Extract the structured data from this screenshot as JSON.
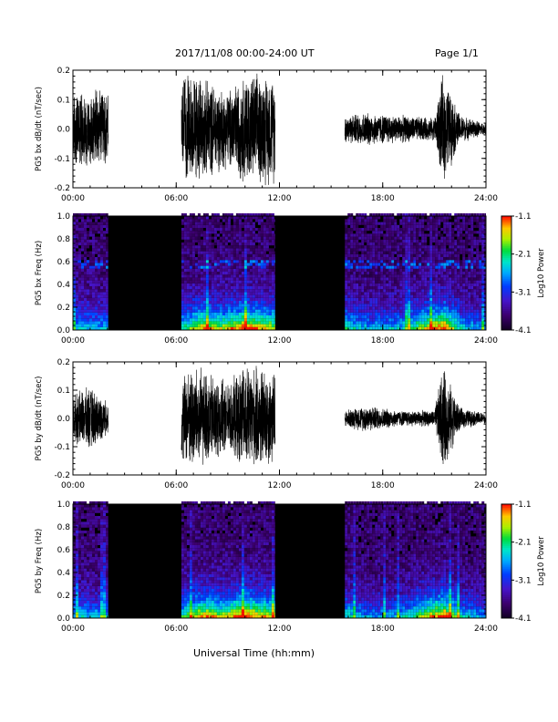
{
  "header": {
    "title": "2017/11/08   00:00-24:00 UT",
    "page": "Page 1/1"
  },
  "footer": {
    "xlabel": "Universal Time (hh:mm)"
  },
  "colors": {
    "background": "#ffffff",
    "spectrogram_background": "#000000",
    "trace": "#000000"
  },
  "chart_data": [
    {
      "type": "line",
      "panel": 1,
      "ylabel": "PG5 bx dB/dt (nT/sec)",
      "ylim": [
        -0.2,
        0.2
      ],
      "yticks": [
        "0.2",
        "0.1",
        "0.0",
        "-0.1",
        "-0.2"
      ],
      "xlim": [
        0,
        24
      ],
      "xticks": [
        "00:00",
        "06:00",
        "12:00",
        "18:00",
        "24:00"
      ],
      "series": [
        {
          "x": [
            0.0,
            2.0,
            6.0,
            7.0,
            8.0,
            9.0,
            10.0,
            11.0,
            11.7,
            15.7,
            17.0,
            19.0,
            21.0,
            21.5,
            22.5,
            24.0
          ],
          "amplitude": [
            0.14,
            0.14,
            0.18,
            0.2,
            0.17,
            0.14,
            0.2,
            0.2,
            0.2,
            0.05,
            0.06,
            0.05,
            0.04,
            0.2,
            0.05,
            0.02
          ]
        }
      ]
    },
    {
      "type": "heatmap",
      "panel": 2,
      "ylabel": "PG5 bx Freq (Hz)",
      "ylim": [
        0.0,
        1.0
      ],
      "yticks": [
        "1.0",
        "0.8",
        "0.6",
        "0.4",
        "0.2",
        "0.0"
      ],
      "xlim": [
        0,
        24
      ],
      "xticks": [
        "00:00",
        "06:00",
        "12:00",
        "18:00",
        "24:00"
      ],
      "colorbar": {
        "label": "Log10 Power",
        "ticks": [
          "-1.1",
          "-2.1",
          "-3.1",
          "-4.1"
        ],
        "range": [
          -4.1,
          -1.1
        ]
      },
      "data_intervals": [
        [
          0.0,
          2.05
        ],
        [
          6.3,
          11.75
        ],
        [
          15.8,
          24.0
        ]
      ],
      "activity": [
        [
          0.0,
          0.45
        ],
        [
          2.0,
          0.4
        ],
        [
          6.3,
          0.5
        ],
        [
          7.5,
          0.85
        ],
        [
          8.5,
          0.7
        ],
        [
          9.8,
          0.9
        ],
        [
          11.5,
          0.75
        ],
        [
          15.8,
          0.55
        ],
        [
          17.0,
          0.4
        ],
        [
          19.0,
          0.45
        ],
        [
          21.5,
          0.95
        ],
        [
          22.5,
          0.45
        ],
        [
          24.0,
          0.35
        ]
      ]
    },
    {
      "type": "line",
      "panel": 3,
      "ylabel": "PG5 by dB/dt (nT/sec)",
      "ylim": [
        -0.2,
        0.2
      ],
      "yticks": [
        "0.2",
        "0.1",
        "0.0",
        "-0.1",
        "-0.2"
      ],
      "xlim": [
        0,
        24
      ],
      "xticks": [
        "00:00",
        "06:00",
        "12:00",
        "18:00",
        "24:00"
      ],
      "series": [
        {
          "x": [
            0.0,
            1.0,
            2.0,
            6.0,
            7.0,
            8.0,
            9.0,
            10.0,
            11.0,
            11.7,
            15.7,
            17.0,
            19.0,
            21.0,
            21.5,
            22.5,
            24.0
          ],
          "amplitude": [
            0.09,
            0.12,
            0.06,
            0.15,
            0.2,
            0.17,
            0.13,
            0.2,
            0.19,
            0.18,
            0.03,
            0.05,
            0.03,
            0.03,
            0.2,
            0.04,
            0.02
          ]
        }
      ]
    },
    {
      "type": "heatmap",
      "panel": 4,
      "ylabel": "PG5 by Freq (Hz)",
      "ylim": [
        0.0,
        1.0
      ],
      "yticks": [
        "1.0",
        "0.8",
        "0.6",
        "0.4",
        "0.2",
        "0.0"
      ],
      "xlim": [
        0,
        24
      ],
      "xticks": [
        "00:00",
        "06:00",
        "12:00",
        "18:00",
        "24:00"
      ],
      "colorbar": {
        "label": "Log10 Power",
        "ticks": [
          "-1.1",
          "-2.1",
          "-3.1",
          "-4.1"
        ],
        "range": [
          -4.1,
          -1.1
        ]
      },
      "data_intervals": [
        [
          0.0,
          2.05
        ],
        [
          6.3,
          11.75
        ],
        [
          15.8,
          24.0
        ]
      ],
      "activity": [
        [
          0.0,
          0.45
        ],
        [
          2.0,
          0.4
        ],
        [
          6.3,
          0.55
        ],
        [
          7.5,
          0.85
        ],
        [
          8.5,
          0.7
        ],
        [
          9.8,
          0.9
        ],
        [
          11.5,
          0.75
        ],
        [
          15.8,
          0.5
        ],
        [
          17.0,
          0.35
        ],
        [
          19.0,
          0.4
        ],
        [
          21.5,
          0.95
        ],
        [
          22.5,
          0.45
        ],
        [
          24.0,
          0.35
        ]
      ]
    }
  ]
}
